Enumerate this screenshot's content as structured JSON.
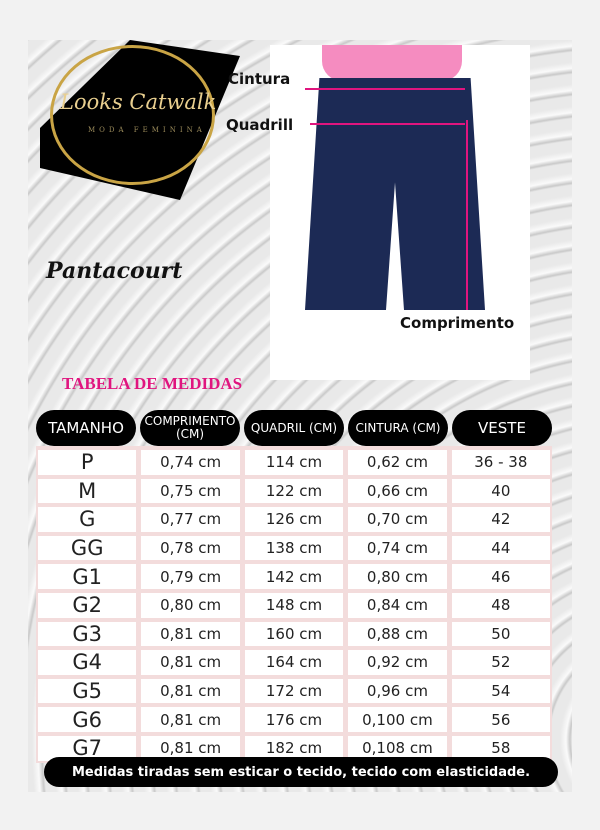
{
  "brand": {
    "name": "Looks Catwalk",
    "tagline": "MODA FEMININA"
  },
  "product": "Pantacourt",
  "diagram_labels": {
    "waist": "Cintura",
    "hip": "Quadrill",
    "length": "Comprimento"
  },
  "table_title": "TABELA DE MEDIDAS",
  "headers": [
    "TAMANHO",
    "COMPRIMENTO (CM)",
    "QUADRIL (CM)",
    "CINTURA (CM)",
    "VESTE"
  ],
  "rows": [
    [
      "P",
      "0,74 cm",
      "114 cm",
      "0,62 cm",
      "36 - 38"
    ],
    [
      "M",
      "0,75 cm",
      "122 cm",
      "0,66 cm",
      "40"
    ],
    [
      "G",
      "0,77 cm",
      "126 cm",
      "0,70 cm",
      "42"
    ],
    [
      "GG",
      "0,78 cm",
      "138 cm",
      "0,74 cm",
      "44"
    ],
    [
      "G1",
      "0,79 cm",
      "142 cm",
      "0,80 cm",
      "46"
    ],
    [
      "G2",
      "0,80 cm",
      "148 cm",
      "0,84 cm",
      "48"
    ],
    [
      "G3",
      "0,81 cm",
      "160 cm",
      "0,88 cm",
      "50"
    ],
    [
      "G4",
      "0,81 cm",
      "164 cm",
      "0,92 cm",
      "52"
    ],
    [
      "G5",
      "0,81 cm",
      "172 cm",
      "0,96 cm",
      "54"
    ],
    [
      "G6",
      "0,81 cm",
      "176 cm",
      "0,100 cm",
      "56"
    ],
    [
      "G7",
      "0,81 cm",
      "182 cm",
      "0,108 cm",
      "58"
    ]
  ],
  "footer": "Medidas tiradas sem esticar o tecido, tecido com elasticidade.",
  "colors": {
    "accent": "#e0157f",
    "header_bg": "#000000",
    "row_bg": "#f3dcdc"
  }
}
